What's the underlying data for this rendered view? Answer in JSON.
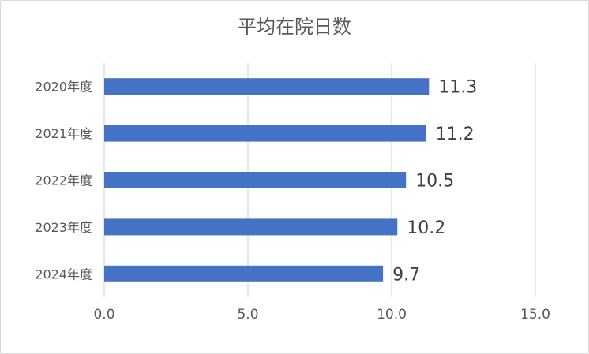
{
  "chart_data": {
    "type": "bar",
    "orientation": "horizontal",
    "title": "平均在院日数",
    "categories": [
      "2020年度",
      "2021年度",
      "2022年度",
      "2023年度",
      "2024年度"
    ],
    "values": [
      11.3,
      11.2,
      10.5,
      10.2,
      9.7
    ],
    "data_labels": [
      "11.3",
      "11.2",
      "10.5",
      "10.2",
      "9.7"
    ],
    "x_ticks": [
      "0.0",
      "5.0",
      "10.0",
      "15.0"
    ],
    "xlim": [
      0,
      15
    ],
    "xlabel": "",
    "ylabel": "",
    "grid": true,
    "legend": "none",
    "colors": {
      "bar": "#4472C4",
      "grid": "#d9d9d9",
      "text": "#595959",
      "label": "#404040"
    }
  }
}
